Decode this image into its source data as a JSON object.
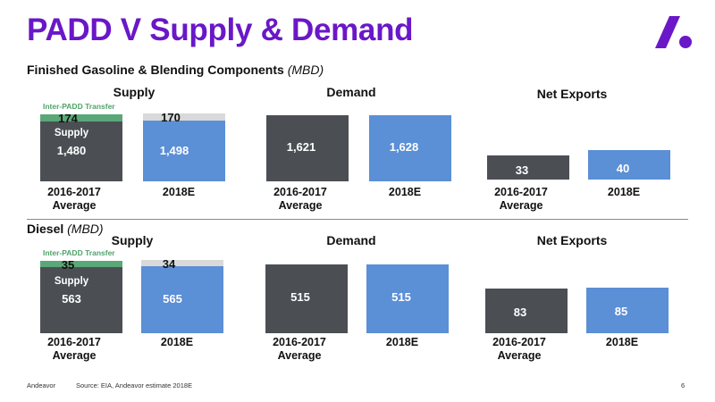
{
  "header": {
    "title": "PADD V Supply & Demand",
    "logo_icon": "andeavor-logo-icon",
    "accent_color": "#6a17c8"
  },
  "sections": {
    "gasoline": {
      "name": "Finished Gasoline & Blending Components",
      "unit": "(MBD)"
    },
    "diesel": {
      "name": "Diesel",
      "unit": "(MBD)"
    }
  },
  "categories": [
    "2016-2017\nAverage",
    "2018E"
  ],
  "notes": {
    "inter_padd": "Inter-PADD Transfer",
    "supply_inside": "Supply"
  },
  "colors": {
    "dark": "#4b4f54",
    "blue": "#5b8fd6",
    "green": "#5aa878",
    "light": "#d9d9d9"
  },
  "chart_data": [
    {
      "type": "bar",
      "stacked": true,
      "title": "Supply",
      "section": "gasoline",
      "categories": [
        "2016-2017 Average",
        "2018E"
      ],
      "series": [
        {
          "name": "Supply",
          "values": [
            1480,
            1498
          ]
        },
        {
          "name": "Inter-PADD Transfer",
          "values": [
            174,
            170
          ]
        }
      ],
      "labels": {
        "base": [
          "1,480",
          "1,498"
        ],
        "top": [
          "174",
          "170"
        ]
      }
    },
    {
      "type": "bar",
      "title": "Demand",
      "section": "gasoline",
      "categories": [
        "2016-2017 Average",
        "2018E"
      ],
      "values": [
        1621,
        1628
      ],
      "labels": [
        "1,621",
        "1,628"
      ]
    },
    {
      "type": "bar",
      "title": "Net Exports",
      "section": "gasoline",
      "categories": [
        "2016-2017 Average",
        "2018E"
      ],
      "values": [
        33,
        40
      ],
      "labels": [
        "33",
        "40"
      ]
    },
    {
      "type": "bar",
      "stacked": true,
      "title": "Supply",
      "section": "diesel",
      "categories": [
        "2016-2017 Average",
        "2018E"
      ],
      "series": [
        {
          "name": "Supply",
          "values": [
            563,
            565
          ]
        },
        {
          "name": "Inter-PADD Transfer",
          "values": [
            35,
            34
          ]
        }
      ],
      "labels": {
        "base": [
          "563",
          "565"
        ],
        "top": [
          "35",
          "34"
        ]
      }
    },
    {
      "type": "bar",
      "title": "Demand",
      "section": "diesel",
      "categories": [
        "2016-2017 Average",
        "2018E"
      ],
      "values": [
        515,
        515
      ],
      "labels": [
        "515",
        "515"
      ]
    },
    {
      "type": "bar",
      "title": "Net Exports",
      "section": "diesel",
      "categories": [
        "2016-2017 Average",
        "2018E"
      ],
      "values": [
        83,
        85
      ],
      "labels": [
        "83",
        "85"
      ]
    }
  ],
  "footer": {
    "company": "Andeavor",
    "source": "Source: EIA, Andeavor estimate 2018E",
    "page": "6"
  }
}
